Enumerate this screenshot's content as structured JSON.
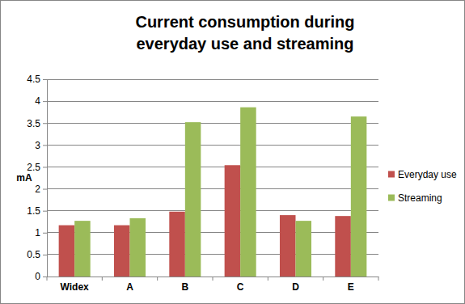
{
  "chart_data": {
    "type": "bar",
    "title": "Current consumption during everyday use and streaming",
    "y_label": "mA",
    "categories": [
      "Widex",
      "A",
      "B",
      "C",
      "D",
      "E"
    ],
    "series": [
      {
        "name": "Everyday use",
        "color": "#c0504d",
        "values": [
          1.17,
          1.17,
          1.48,
          2.54,
          1.4,
          1.38
        ]
      },
      {
        "name": "Streaming",
        "color": "#9bbb59",
        "values": [
          1.27,
          1.33,
          3.52,
          3.86,
          1.27,
          3.65
        ]
      }
    ],
    "ylim": [
      0,
      4.5
    ],
    "yticks": [
      0,
      0.5,
      1,
      1.5,
      2,
      2.5,
      3,
      3.5,
      4,
      4.5
    ],
    "grid": true,
    "legend": "right"
  }
}
